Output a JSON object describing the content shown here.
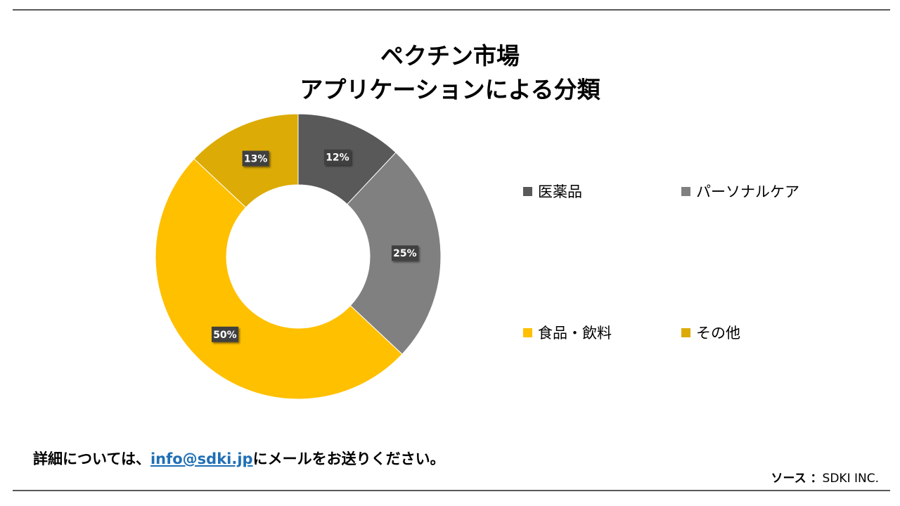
{
  "chart_data": {
    "type": "pie",
    "title": "ペクチン市場",
    "subtitle": "アプリケーションによる分類",
    "categories": [
      "医薬品",
      "パーソナルケア",
      "食品・飲料",
      "その他"
    ],
    "values": [
      12,
      25,
      50,
      13
    ],
    "value_labels": [
      "12%",
      "25%",
      "50%",
      "13%"
    ],
    "colors": [
      "#595959",
      "#808080",
      "#ffc000",
      "#dcab05"
    ],
    "donut": true,
    "legend_position": "right"
  },
  "footer": {
    "note_prefix": "詳細については、",
    "email": "info@sdki.jp",
    "note_suffix": "にメールをお送りください。",
    "source_label": "ソース ：",
    "source_value": "SDKI INC."
  }
}
